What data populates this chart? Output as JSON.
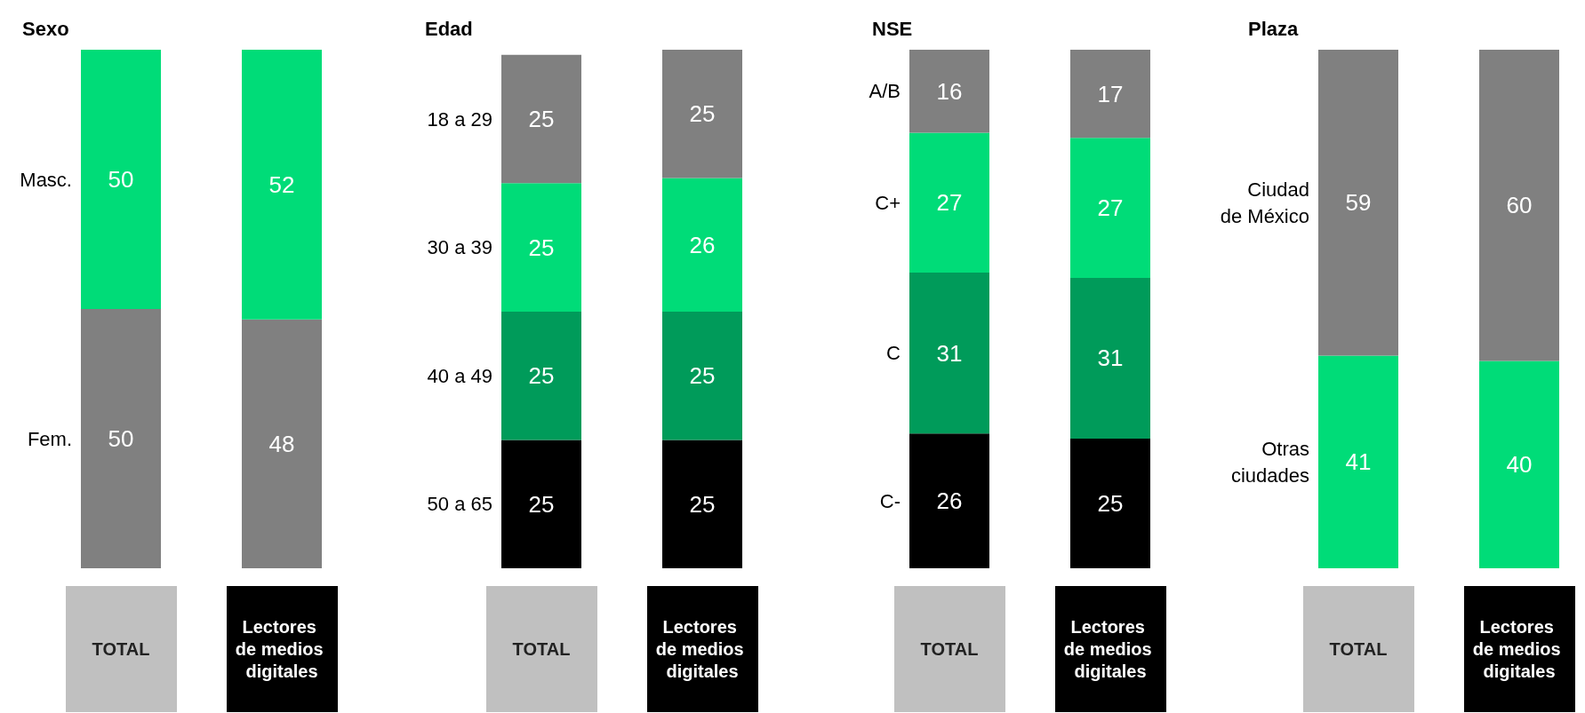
{
  "chart_data": [
    {
      "type": "bar",
      "title": "Sexo",
      "stacked": true,
      "data_labels": true,
      "tick_labels": "x",
      "categories": [
        "TOTAL",
        "Lectores de medios digitales"
      ],
      "series": [
        {
          "name": "Fem.",
          "color": "#808080",
          "values": [
            50,
            48
          ]
        },
        {
          "name": "Masc.",
          "color": "#00dc78",
          "values": [
            50,
            52
          ]
        }
      ]
    },
    {
      "type": "bar",
      "title": "Edad",
      "stacked": true,
      "data_labels": true,
      "tick_labels": "x",
      "categories": [
        "TOTAL",
        "Lectores de medios digitales"
      ],
      "series": [
        {
          "name": "50 a 65",
          "color": "#000000",
          "values": [
            25,
            25
          ]
        },
        {
          "name": "40 a 49",
          "color": "#009b5a",
          "values": [
            25,
            25
          ]
        },
        {
          "name": "30 a 39",
          "color": "#00dc78",
          "values": [
            25,
            26
          ]
        },
        {
          "name": "18 a 29",
          "color": "#808080",
          "values": [
            25,
            25
          ]
        }
      ]
    },
    {
      "type": "bar",
      "title": "NSE",
      "stacked": true,
      "data_labels": true,
      "tick_labels": "x",
      "categories": [
        "TOTAL",
        "Lectores de medios digitales"
      ],
      "series": [
        {
          "name": "C-",
          "color": "#000000",
          "values": [
            26,
            25
          ]
        },
        {
          "name": "C",
          "color": "#009b5a",
          "values": [
            31,
            31
          ]
        },
        {
          "name": "C+",
          "color": "#00dc78",
          "values": [
            27,
            27
          ]
        },
        {
          "name": "A/B",
          "color": "#808080",
          "values": [
            16,
            17
          ]
        }
      ]
    },
    {
      "type": "bar",
      "title": "Plaza",
      "stacked": true,
      "data_labels": true,
      "tick_labels": "x",
      "categories": [
        "TOTAL",
        "Lectores de medios digitales"
      ],
      "series": [
        {
          "name": "Otras\nciudades",
          "color": "#00dc78",
          "values": [
            41,
            40
          ]
        },
        {
          "name": "Ciudad\nde México",
          "color": "#808080",
          "values": [
            59,
            60
          ]
        }
      ]
    }
  ]
}
